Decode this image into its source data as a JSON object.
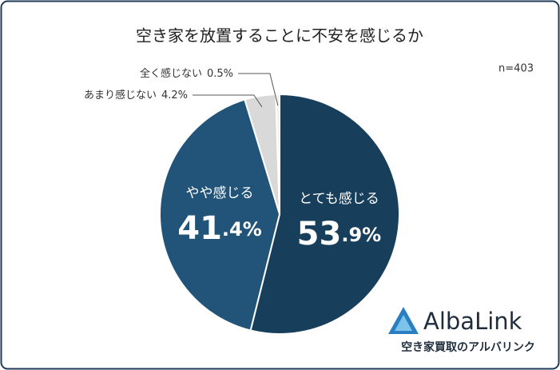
{
  "chart_data": {
    "type": "pie",
    "title": "空き家を放置することに不安を感じるか",
    "note": "n=403",
    "categories": [
      "とても感じる",
      "やや感じる",
      "あまり感じない",
      "全く感じない"
    ],
    "values": [
      53.9,
      41.4,
      4.2,
      0.5
    ],
    "value_labels": [
      "53.9%",
      "41.4%",
      "4.2%",
      "0.5%"
    ],
    "colors": [
      "#173f5c",
      "#215478",
      "#d9d9d9",
      "#eeeeee"
    ]
  },
  "logo": {
    "name": "AlbaLink",
    "tagline": "空き家買取のアルバリンク"
  }
}
